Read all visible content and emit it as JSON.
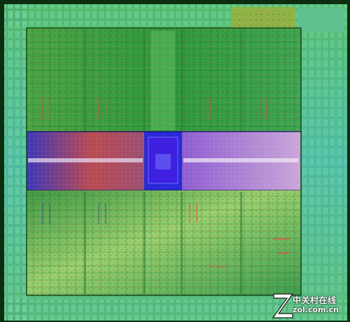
{
  "image": {
    "subject": "GPU die shot",
    "colors": {
      "background": "#0c2d10",
      "die_green": "#3a9b3a",
      "die_light_green": "#8fcf6a",
      "band_blue": "#3b2fb0",
      "band_red": "#b8484f",
      "band_purple": "#b891d8",
      "center_block": "#3f1fe0",
      "edge_cyan": "#4fc1b0"
    }
  },
  "watermark": {
    "brand_cn": "中关村在线",
    "url": "zol.com.cn",
    "logo_icon": "zol-z-logo-icon"
  }
}
